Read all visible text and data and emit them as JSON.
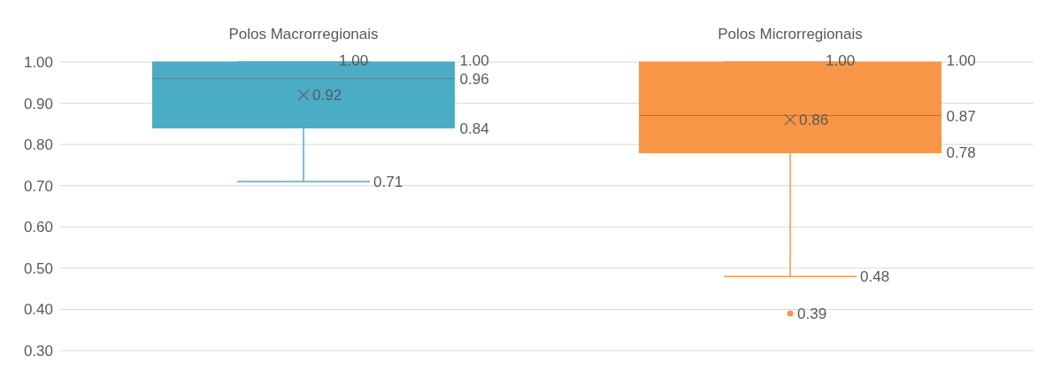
{
  "chart_data": {
    "type": "box",
    "categories": [
      "Polos Macrorregionais",
      "Polos Microrregionais"
    ],
    "boxes": [
      {
        "low": 0.71,
        "q1": 0.84,
        "median": 0.96,
        "q3": 1.0,
        "high": 1.0,
        "mean": 0.92
      },
      {
        "low": 0.48,
        "q1": 0.78,
        "median": 0.87,
        "q3": 1.0,
        "high": 1.0,
        "mean": 0.86,
        "outliers": [
          0.39
        ]
      }
    ],
    "colors": [
      "#4bacc6",
      "#f79646"
    ],
    "ylim": [
      0.3,
      1.0
    ],
    "yticks": [
      {
        "value": 0.3,
        "label": "0.30"
      },
      {
        "value": 0.4,
        "label": "0.40"
      },
      {
        "value": 0.5,
        "label": "0.50"
      },
      {
        "value": 0.6,
        "label": "0.60"
      },
      {
        "value": 0.7,
        "label": "0.70"
      },
      {
        "value": 0.8,
        "label": "0.80"
      },
      {
        "value": 0.9,
        "label": "0.90"
      },
      {
        "value": 1.0,
        "label": "1.00"
      }
    ],
    "grid": "y",
    "legend": false,
    "annotations": [
      "1.00",
      "1.00",
      "0.96",
      "0.92",
      "0.84",
      "0.71",
      "1.00",
      "1.00",
      "0.87",
      "0.86",
      "0.78",
      "0.48",
      "0.39"
    ]
  }
}
